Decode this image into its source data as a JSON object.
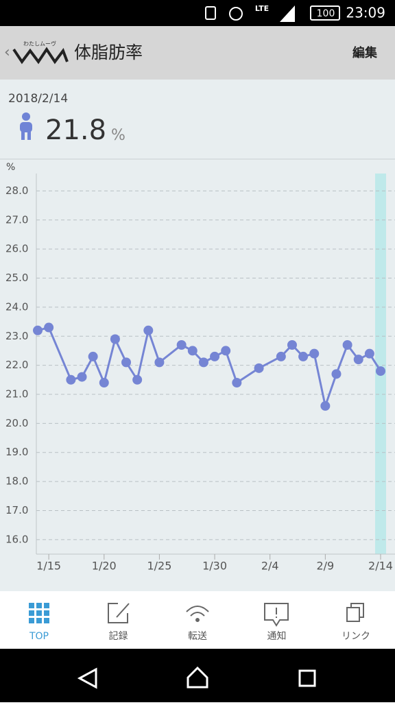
{
  "status_bar": {
    "network": "LTE",
    "battery": "100",
    "time": "23:09"
  },
  "header": {
    "logo_text": "わたしムーヴ",
    "title": "体脂肪率",
    "action": "編集"
  },
  "summary": {
    "date": "2018/2/14",
    "value": "21.8",
    "unit": "%"
  },
  "chart_data": {
    "type": "line",
    "y_unit_label": "%",
    "x": [
      "1/14",
      "1/15",
      "1/17",
      "1/18",
      "1/19",
      "1/20",
      "1/21",
      "1/22",
      "1/23",
      "1/24",
      "1/25",
      "1/27",
      "1/28",
      "1/29",
      "1/30",
      "1/31",
      "2/1",
      "2/3",
      "2/5",
      "2/6",
      "2/7",
      "2/8",
      "2/9",
      "2/10",
      "2/11",
      "2/12",
      "2/13",
      "2/14"
    ],
    "values": [
      23.2,
      23.3,
      21.5,
      21.6,
      22.3,
      21.4,
      22.9,
      22.1,
      21.5,
      23.2,
      22.1,
      22.7,
      22.5,
      22.1,
      22.3,
      22.5,
      21.4,
      21.9,
      22.3,
      22.7,
      22.3,
      22.4,
      20.6,
      21.7,
      22.7,
      22.2,
      22.4,
      21.8
    ],
    "color": "#7585d4",
    "xlim": [
      "1/14",
      "2/14"
    ],
    "ylim": [
      15.5,
      28.6
    ],
    "yticks": [
      {
        "value": 16,
        "label": "16.0"
      },
      {
        "value": 17,
        "label": "17.0"
      },
      {
        "value": 18,
        "label": "18.0"
      },
      {
        "value": 19,
        "label": "19.0"
      },
      {
        "value": 20,
        "label": "20.0"
      },
      {
        "value": 21,
        "label": "21.0"
      },
      {
        "value": 22,
        "label": "22.0"
      },
      {
        "value": 23,
        "label": "23.0"
      },
      {
        "value": 24,
        "label": "24.0"
      },
      {
        "value": 25,
        "label": "25.0"
      },
      {
        "value": 26,
        "label": "26.0"
      },
      {
        "value": 27,
        "label": "27.0"
      },
      {
        "value": 28,
        "label": "28.0"
      }
    ],
    "xticks": [
      "1/15",
      "1/20",
      "1/25",
      "1/30",
      "2/4",
      "2/9",
      "2/14"
    ],
    "grid": true,
    "highlight": "2/14",
    "highlight_color": "#bfe9ea"
  },
  "nav": [
    {
      "label": "TOP"
    },
    {
      "label": "記録"
    },
    {
      "label": "転送"
    },
    {
      "label": "通知"
    },
    {
      "label": "リンク"
    }
  ]
}
